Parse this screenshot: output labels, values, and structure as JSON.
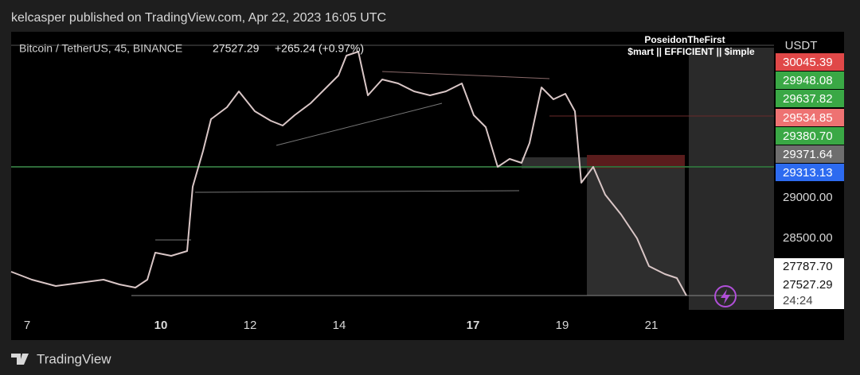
{
  "header": {
    "text": "kelcasper published on TradingView.com, Apr 22, 2023 16:05 UTC"
  },
  "legend": {
    "symbol": "Bitcoin / TetherUS, 45, BINANCE",
    "price": "27527.29",
    "change": "+265.24 (+0.97%)"
  },
  "watermark": {
    "author": "PoseidonTheFirst",
    "motto": "$mart || EFFICIENT || $imple"
  },
  "price_axis": {
    "unit": "USDT",
    "badges": [
      "30045.39",
      "29948.08",
      "29637.82",
      "29534.85",
      "29380.70",
      "29371.64",
      "29313.13"
    ],
    "levels": [
      "29000.00",
      "28500.00"
    ],
    "current": [
      "27787.70",
      "27527.29",
      "24:24"
    ]
  },
  "time_axis": {
    "labels": [
      "7",
      "10",
      "12",
      "14",
      "17",
      "19",
      "21"
    ]
  },
  "footer": {
    "brand": "TradingView"
  }
}
